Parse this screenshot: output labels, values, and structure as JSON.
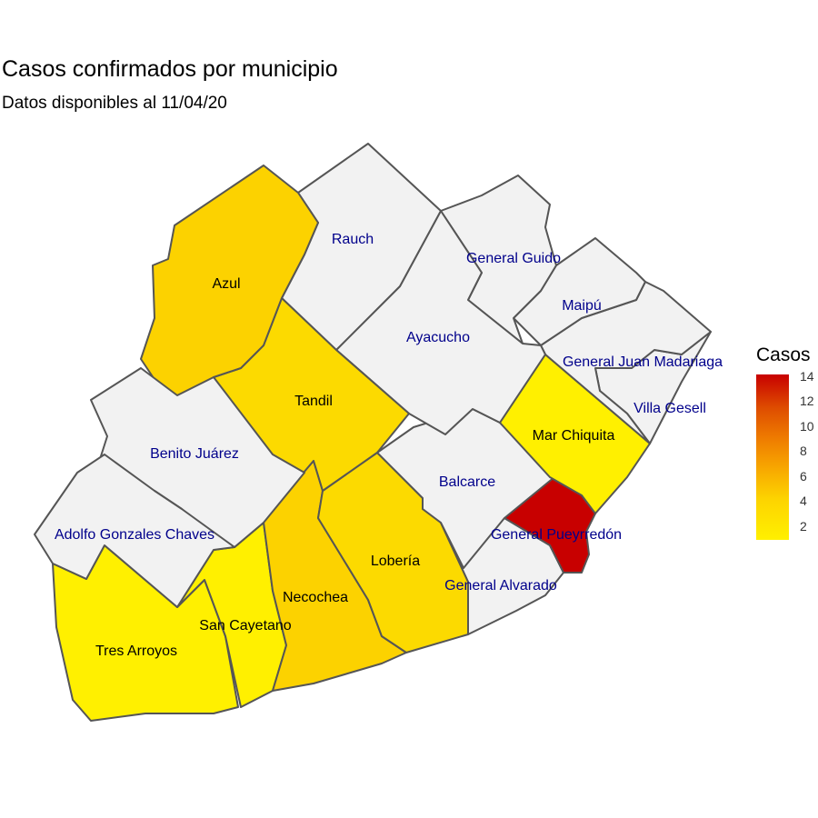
{
  "title": "Casos confirmados por municipio",
  "subtitle": "Datos disponibles al 11/04/20",
  "legend": {
    "title": "Casos",
    "ticks": [
      "14",
      "12",
      "10",
      "8",
      "6",
      "4",
      "2"
    ],
    "scale_min": 1,
    "scale_max": 14,
    "low_color": "#FFF000",
    "high_color": "#C80000"
  },
  "no_data_color": "#F2F2F2",
  "municipalities": {
    "azul": {
      "name": "Azul",
      "casos": 4,
      "fill": "#FCD200",
      "label_color": "#000000"
    },
    "rauch": {
      "name": "Rauch",
      "casos": null,
      "fill": "#F2F2F2",
      "label_color": "#00008B"
    },
    "general_guido": {
      "name": "General Guido",
      "casos": null,
      "fill": "#F2F2F2",
      "label_color": "#00008B"
    },
    "maipu": {
      "name": "Maipú",
      "casos": null,
      "fill": "#F2F2F2",
      "label_color": "#00008B"
    },
    "ayacucho": {
      "name": "Ayacucho",
      "casos": null,
      "fill": "#F2F2F2",
      "label_color": "#00008B"
    },
    "madariaga": {
      "name": "General Juan Madariaga",
      "casos": null,
      "fill": "#F2F2F2",
      "label_color": "#00008B"
    },
    "villa_gesell": {
      "name": "Villa Gesell",
      "casos": null,
      "fill": "#F2F2F2",
      "label_color": "#00008B"
    },
    "tandil": {
      "name": "Tandil",
      "casos": 3,
      "fill": "#FCDA00",
      "label_color": "#000000"
    },
    "mar_chiquita": {
      "name": "Mar Chiquita",
      "casos": 1,
      "fill": "#FFF000",
      "label_color": "#000000"
    },
    "benito_juarez": {
      "name": "Benito Juárez",
      "casos": null,
      "fill": "#F2F2F2",
      "label_color": "#00008B"
    },
    "balcarce": {
      "name": "Balcarce",
      "casos": null,
      "fill": "#F2F2F2",
      "label_color": "#00008B"
    },
    "pueyrredon": {
      "name": "General Pueyrredón",
      "casos": 14,
      "fill": "#C80000",
      "label_color": "#00008B"
    },
    "gonzales_chaves": {
      "name": "Adolfo Gonzales Chaves",
      "casos": null,
      "fill": "#F2F2F2",
      "label_color": "#00008B"
    },
    "loberia": {
      "name": "Lobería",
      "casos": 3,
      "fill": "#FCDA00",
      "label_color": "#000000"
    },
    "general_alvarado": {
      "name": "General Alvarado",
      "casos": null,
      "fill": "#F2F2F2",
      "label_color": "#00008B"
    },
    "necochea": {
      "name": "Necochea",
      "casos": 4,
      "fill": "#FCD200",
      "label_color": "#000000"
    },
    "san_cayetano": {
      "name": "San Cayetano",
      "casos": 1,
      "fill": "#FFF000",
      "label_color": "#000000"
    },
    "tres_arroyos": {
      "name": "Tres Arroyos",
      "casos": 1,
      "fill": "#FFF000",
      "label_color": "#000000"
    }
  }
}
